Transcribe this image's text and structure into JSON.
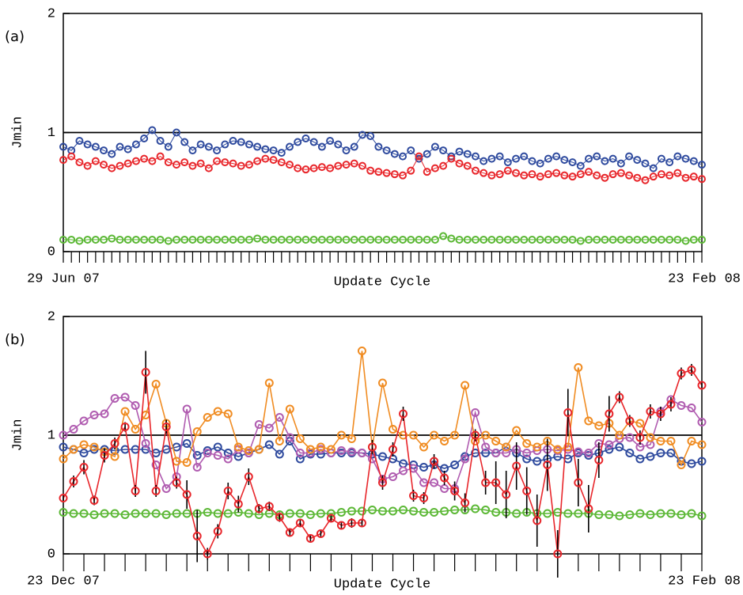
{
  "chart_data": [
    {
      "type": "line",
      "panel_label": "(a)",
      "y_label": "Jmin",
      "x_label": "Update Cycle",
      "categories": [
        "29 Jun 07",
        null,
        null,
        null,
        null,
        null,
        null,
        null,
        null,
        null,
        null,
        null,
        null,
        null,
        null,
        null,
        null,
        null,
        null,
        null,
        null,
        null,
        null,
        null,
        null,
        null,
        null,
        null,
        null,
        null,
        null,
        null,
        null,
        null,
        null,
        null,
        null,
        null,
        null,
        null,
        null,
        null,
        null,
        null,
        null,
        null,
        null,
        null,
        null,
        null,
        null,
        null,
        null,
        null,
        null,
        null,
        null,
        null,
        null,
        null,
        null,
        null,
        null,
        null,
        null,
        null,
        null,
        null,
        null,
        null,
        null,
        null,
        null,
        null,
        null,
        null,
        null,
        null,
        null,
        "23 Feb 08"
      ],
      "ylim": [
        0,
        2
      ],
      "yticks": [
        0,
        1,
        2
      ],
      "hline": 1,
      "series": [
        {
          "color": "#e8262b",
          "values": [
            0.77,
            0.8,
            0.75,
            0.72,
            0.76,
            0.73,
            0.7,
            0.72,
            0.74,
            0.76,
            0.78,
            0.76,
            0.8,
            0.75,
            0.73,
            0.75,
            0.72,
            0.74,
            0.7,
            0.76,
            0.75,
            0.74,
            0.72,
            0.73,
            0.76,
            0.78,
            0.77,
            0.75,
            0.73,
            0.7,
            0.69,
            0.7,
            0.71,
            0.7,
            0.72,
            0.73,
            0.74,
            0.72,
            0.68,
            0.67,
            0.66,
            0.65,
            0.64,
            0.68,
            0.8,
            0.67,
            0.7,
            0.72,
            0.78,
            0.74,
            0.72,
            0.68,
            0.66,
            0.64,
            0.65,
            0.68,
            0.66,
            0.64,
            0.65,
            0.63,
            0.65,
            0.66,
            0.64,
            0.63,
            0.65,
            0.67,
            0.64,
            0.62,
            0.65,
            0.66,
            0.64,
            0.62,
            0.6,
            0.63,
            0.65,
            0.64,
            0.66,
            0.62,
            0.63,
            0.61
          ]
        },
        {
          "color": "#2e4a9e",
          "values": [
            0.88,
            0.85,
            0.93,
            0.9,
            0.88,
            0.85,
            0.82,
            0.88,
            0.86,
            0.9,
            0.95,
            1.02,
            0.93,
            0.88,
            1.0,
            0.92,
            0.85,
            0.9,
            0.88,
            0.85,
            0.9,
            0.93,
            0.92,
            0.9,
            0.88,
            0.86,
            0.85,
            0.83,
            0.88,
            0.92,
            0.95,
            0.92,
            0.88,
            0.93,
            0.9,
            0.85,
            0.88,
            0.98,
            0.97,
            0.88,
            0.85,
            0.82,
            0.8,
            0.85,
            0.78,
            0.82,
            0.88,
            0.85,
            0.8,
            0.84,
            0.82,
            0.8,
            0.76,
            0.78,
            0.8,
            0.75,
            0.78,
            0.8,
            0.76,
            0.74,
            0.78,
            0.8,
            0.77,
            0.75,
            0.72,
            0.78,
            0.8,
            0.76,
            0.78,
            0.74,
            0.8,
            0.77,
            0.74,
            0.7,
            0.78,
            0.75,
            0.8,
            0.78,
            0.76,
            0.73
          ]
        },
        {
          "color": "#5cb836",
          "values": [
            0.1,
            0.1,
            0.09,
            0.1,
            0.1,
            0.1,
            0.11,
            0.1,
            0.1,
            0.1,
            0.1,
            0.1,
            0.1,
            0.09,
            0.1,
            0.1,
            0.1,
            0.1,
            0.1,
            0.1,
            0.1,
            0.1,
            0.1,
            0.1,
            0.11,
            0.1,
            0.1,
            0.1,
            0.1,
            0.1,
            0.1,
            0.1,
            0.1,
            0.1,
            0.1,
            0.1,
            0.1,
            0.1,
            0.1,
            0.1,
            0.1,
            0.1,
            0.1,
            0.1,
            0.1,
            0.1,
            0.1,
            0.13,
            0.11,
            0.1,
            0.1,
            0.1,
            0.1,
            0.1,
            0.1,
            0.1,
            0.1,
            0.1,
            0.1,
            0.1,
            0.1,
            0.1,
            0.1,
            0.1,
            0.09,
            0.1,
            0.1,
            0.1,
            0.1,
            0.1,
            0.1,
            0.1,
            0.1,
            0.1,
            0.1,
            0.1,
            0.1,
            0.09,
            0.1,
            0.1
          ]
        }
      ]
    },
    {
      "type": "line",
      "panel_label": "(b)",
      "y_label": "Jmin",
      "x_label": "Update Cycle",
      "categories": [
        "23 Dec 07",
        null,
        null,
        null,
        null,
        null,
        null,
        null,
        null,
        null,
        null,
        null,
        null,
        null,
        null,
        null,
        null,
        null,
        null,
        null,
        null,
        null,
        null,
        null,
        null,
        null,
        null,
        null,
        null,
        null,
        null,
        null,
        null,
        null,
        null,
        null,
        null,
        null,
        null,
        null,
        null,
        null,
        null,
        null,
        null,
        null,
        null,
        null,
        null,
        null,
        null,
        null,
        null,
        null,
        null,
        null,
        null,
        null,
        null,
        null,
        null,
        null,
        "23 Feb 08"
      ],
      "ylim": [
        0,
        2
      ],
      "yticks": [
        0,
        1,
        2
      ],
      "hline": 1,
      "series": [
        {
          "color": "#e8262b",
          "values": [
            0.47,
            0.61,
            0.73,
            0.45,
            0.83,
            0.93,
            1.07,
            0.53,
            1.53,
            0.53,
            1.07,
            0.6,
            0.5,
            0.15,
            0.0,
            0.19,
            0.53,
            0.42,
            0.65,
            0.38,
            0.4,
            0.31,
            0.18,
            0.26,
            0.13,
            0.17,
            0.3,
            0.24,
            0.26,
            0.26,
            0.9,
            0.6,
            0.88,
            1.18,
            0.49,
            0.47,
            0.78,
            0.64,
            0.53,
            0.43,
            1.0,
            0.6,
            0.6,
            0.5,
            0.74,
            0.53,
            0.28,
            0.75,
            0.0,
            1.19,
            0.6,
            0.38,
            0.79,
            1.18,
            1.32,
            1.12,
            0.98,
            1.2,
            1.18,
            1.26,
            1.52,
            1.55,
            1.42
          ],
          "errors": [
            0.03,
            0.05,
            0.06,
            0.04,
            0.06,
            0.05,
            0.04,
            0.05,
            0.18,
            0.05,
            0.06,
            0.05,
            0.12,
            0.22,
            0.05,
            0.06,
            0.07,
            0.07,
            0.07,
            0.04,
            0.04,
            0.04,
            0.03,
            0.03,
            0.03,
            0.03,
            0.03,
            0.03,
            0.04,
            0.03,
            0.06,
            0.06,
            0.06,
            0.06,
            0.05,
            0.05,
            0.06,
            0.06,
            0.08,
            0.08,
            0.05,
            0.1,
            0.18,
            0.2,
            0.2,
            0.2,
            0.22,
            0.22,
            0.2,
            0.2,
            0.2,
            0.2,
            0.15,
            0.15,
            0.05,
            0.05,
            0.06,
            0.06,
            0.06,
            0.06,
            0.05,
            0.05,
            0.03
          ]
        },
        {
          "color": "#f08c22",
          "values": [
            0.8,
            0.88,
            0.92,
            0.9,
            0.86,
            0.82,
            1.2,
            1.05,
            1.17,
            1.43,
            1.1,
            0.78,
            0.77,
            1.03,
            1.15,
            1.2,
            1.18,
            0.9,
            0.87,
            0.88,
            1.44,
            0.95,
            1.22,
            0.97,
            0.88,
            0.9,
            0.88,
            1.0,
            0.97,
            1.71,
            0.9,
            1.44,
            1.05,
            1.0,
            1.0,
            0.9,
            1.0,
            0.95,
            1.0,
            1.42,
            0.95,
            1.0,
            0.95,
            0.9,
            1.04,
            0.93,
            0.9,
            0.95,
            0.88,
            0.9,
            1.57,
            1.12,
            1.08,
            1.1,
            1.0,
            1.12,
            1.1,
            0.98,
            0.95,
            0.95,
            0.75,
            0.95,
            0.92
          ]
        },
        {
          "color": "#b05cb0",
          "values": [
            1.0,
            1.05,
            1.12,
            1.17,
            1.18,
            1.31,
            1.32,
            1.25,
            0.93,
            0.75,
            0.55,
            0.65,
            1.22,
            0.73,
            0.85,
            0.83,
            0.8,
            0.88,
            0.85,
            1.09,
            1.06,
            1.15,
            0.98,
            0.85,
            0.85,
            0.88,
            0.85,
            0.87,
            0.86,
            0.85,
            0.8,
            0.63,
            0.65,
            0.7,
            0.72,
            0.6,
            0.6,
            0.55,
            0.55,
            0.8,
            1.19,
            0.9,
            0.85,
            0.85,
            0.88,
            0.85,
            0.87,
            0.88,
            0.87,
            0.88,
            0.86,
            0.85,
            0.93,
            0.92,
            0.97,
            0.98,
            0.9,
            0.92,
            1.2,
            1.3,
            1.25,
            1.23,
            1.11
          ]
        },
        {
          "color": "#2e4a9e",
          "values": [
            0.9,
            0.88,
            0.85,
            0.88,
            0.88,
            0.87,
            0.88,
            0.88,
            0.88,
            0.85,
            0.88,
            0.9,
            0.93,
            0.83,
            0.87,
            0.9,
            0.85,
            0.82,
            0.85,
            0.88,
            0.92,
            0.84,
            0.95,
            0.8,
            0.84,
            0.84,
            0.85,
            0.85,
            0.85,
            0.85,
            0.84,
            0.82,
            0.8,
            0.76,
            0.75,
            0.73,
            0.75,
            0.72,
            0.75,
            0.82,
            0.85,
            0.85,
            0.85,
            0.9,
            0.85,
            0.8,
            0.78,
            0.8,
            0.82,
            0.8,
            0.85,
            0.83,
            0.85,
            0.88,
            0.9,
            0.85,
            0.8,
            0.82,
            0.85,
            0.85,
            0.78,
            0.76,
            0.78
          ]
        },
        {
          "color": "#5cb836",
          "values": [
            0.35,
            0.34,
            0.34,
            0.33,
            0.34,
            0.34,
            0.33,
            0.34,
            0.34,
            0.34,
            0.33,
            0.34,
            0.34,
            0.34,
            0.35,
            0.34,
            0.34,
            0.35,
            0.34,
            0.33,
            0.34,
            0.33,
            0.34,
            0.34,
            0.33,
            0.34,
            0.34,
            0.35,
            0.36,
            0.36,
            0.37,
            0.36,
            0.36,
            0.37,
            0.36,
            0.35,
            0.35,
            0.36,
            0.37,
            0.37,
            0.38,
            0.37,
            0.35,
            0.35,
            0.34,
            0.35,
            0.34,
            0.34,
            0.35,
            0.34,
            0.34,
            0.34,
            0.33,
            0.33,
            0.32,
            0.33,
            0.34,
            0.33,
            0.34,
            0.34,
            0.33,
            0.34,
            0.32
          ]
        }
      ]
    }
  ]
}
